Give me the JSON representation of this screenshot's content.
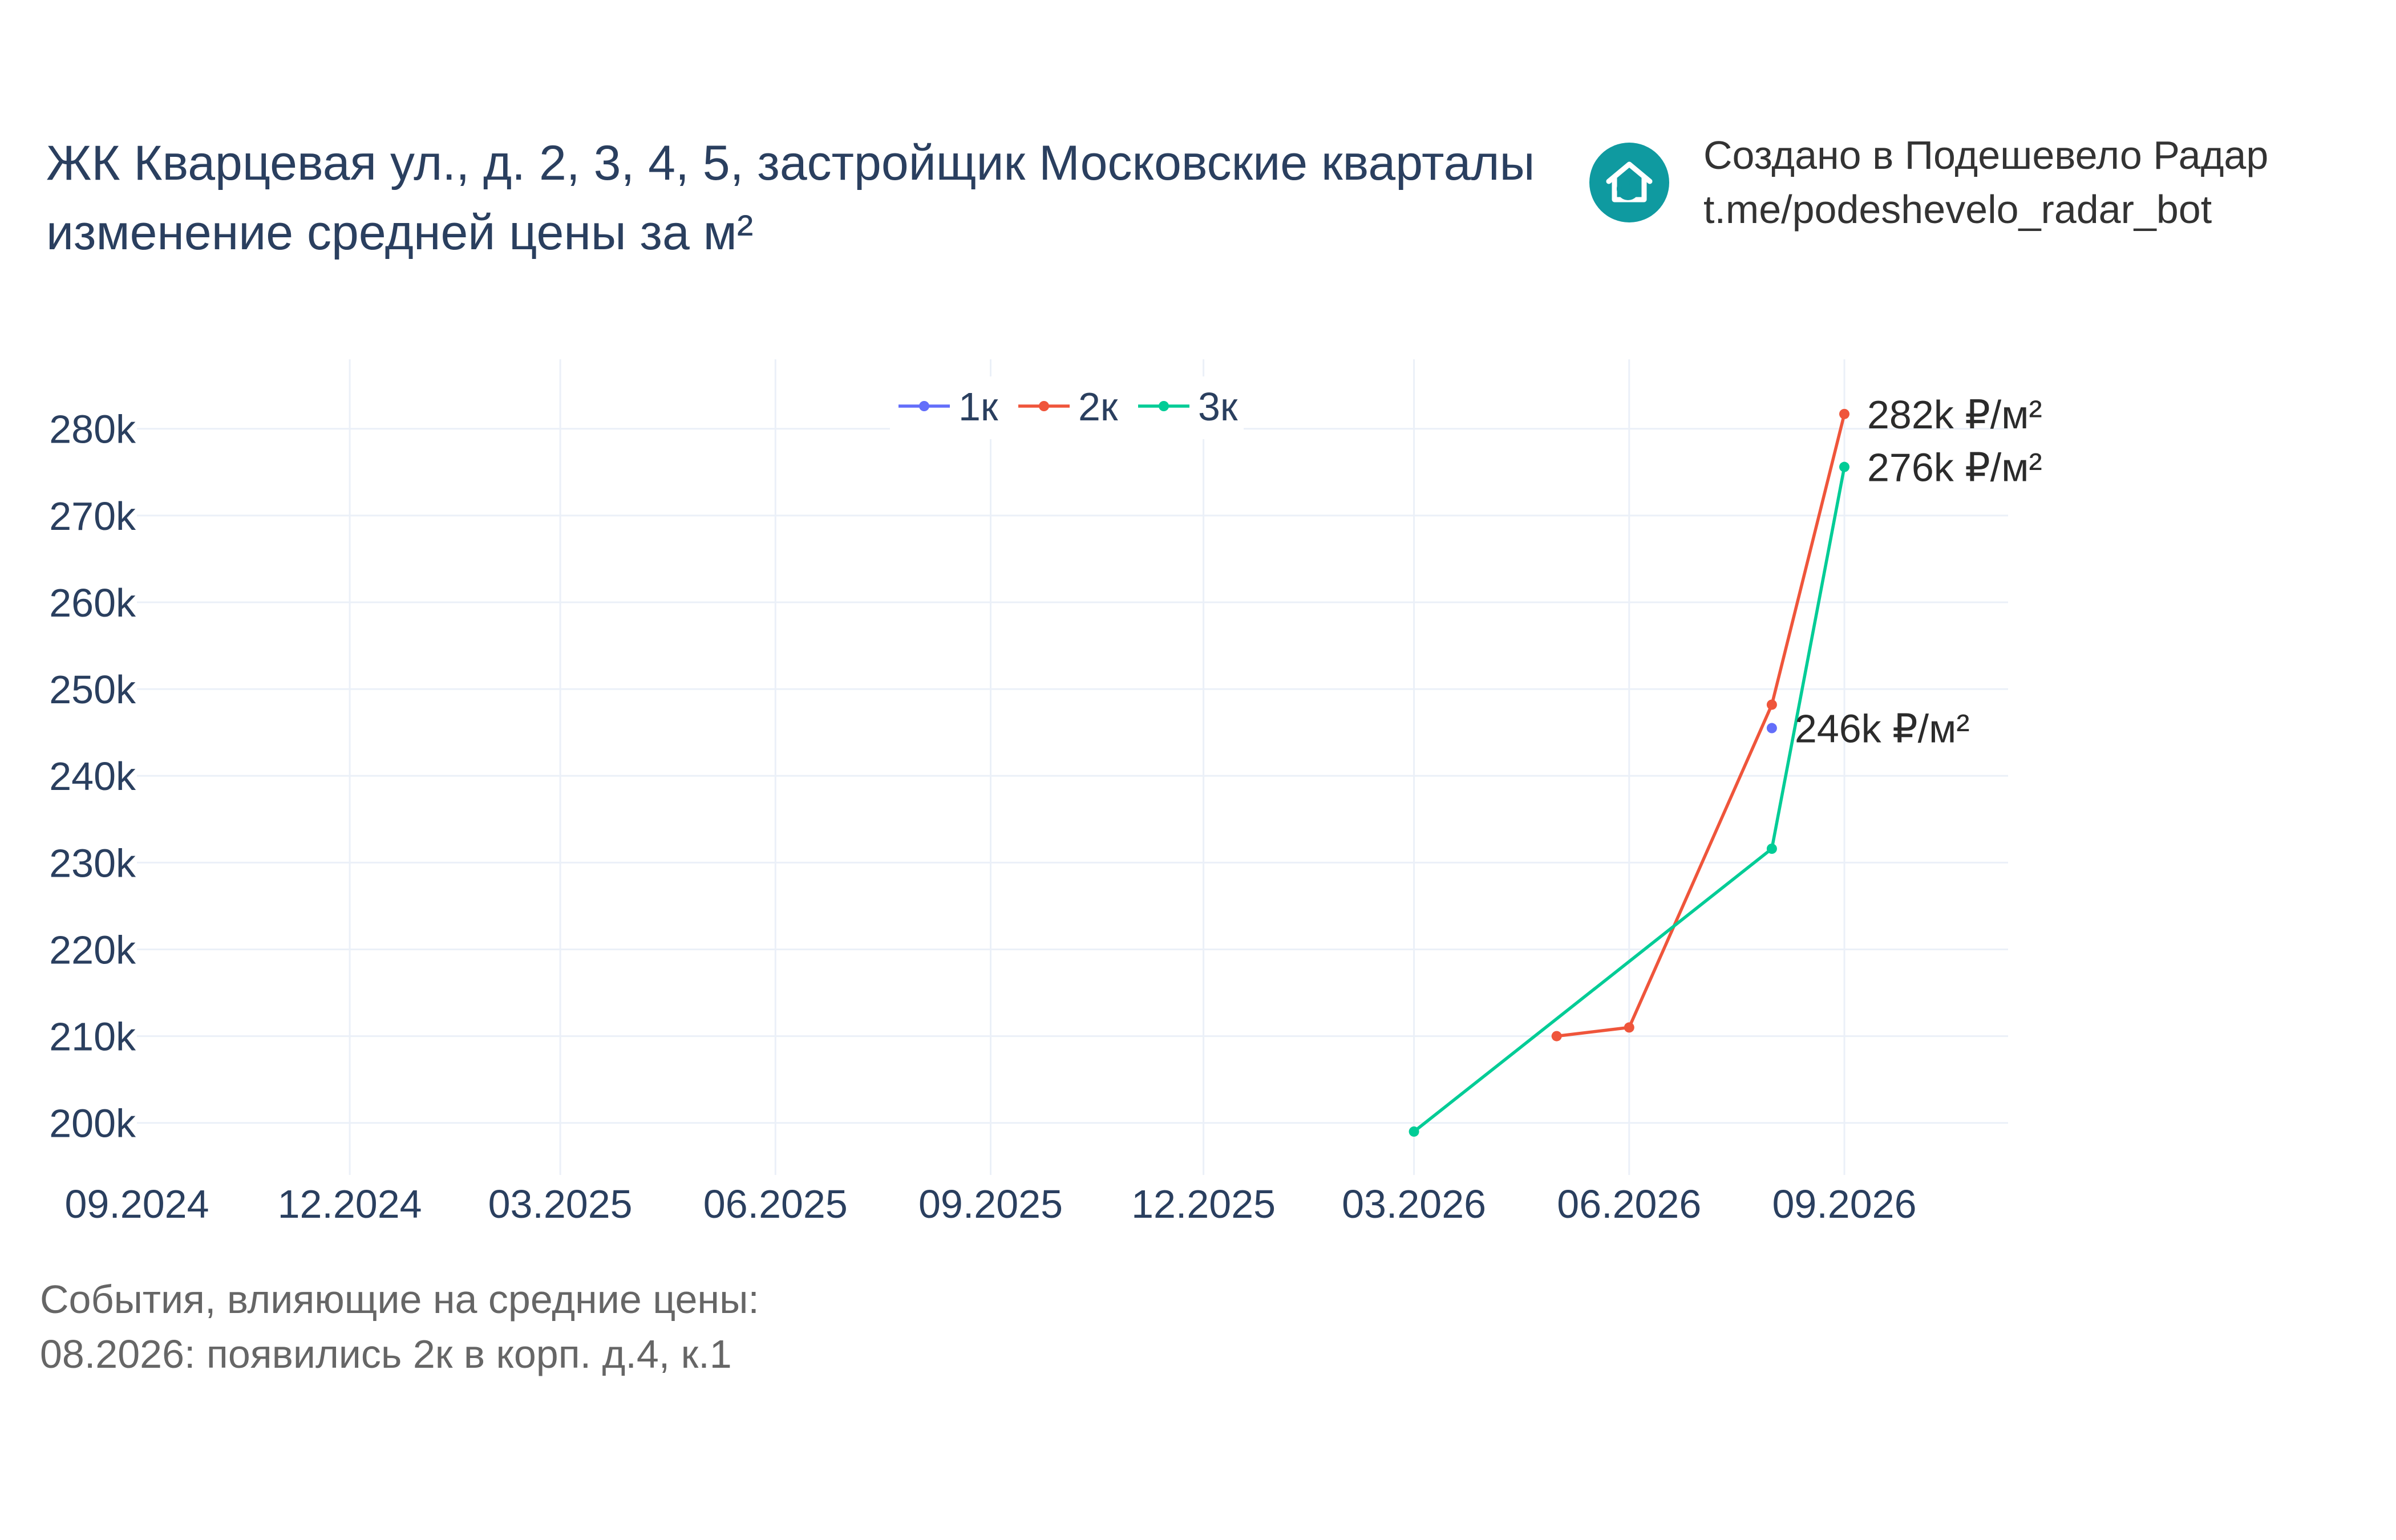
{
  "header": {
    "title_line1": "ЖК Кварцевая ул., д. 2, 3, 4, 5, застройщик Московские кварталы",
    "title_line2": "изменение средней цены за м²",
    "brand_line1": "Создано в Подешевело Радар",
    "brand_line2": "t.me/podeshevelo_radar_bot",
    "logo_icon": "house-refresh-icon",
    "logo_color": "#0f9aa0"
  },
  "events": {
    "heading": "События, влияющие на средние цены:",
    "items": [
      "08.2026: появились 2к в корп. д.4, к.1"
    ]
  },
  "chart_data": {
    "type": "line",
    "title": "",
    "xlabel": "",
    "ylabel": "",
    "x_axis_type": "date",
    "xlim": [
      "2024-09-01",
      "2026-11-10"
    ],
    "ylim": [
      194000,
      288000
    ],
    "grid": true,
    "legend_placement": "top-center",
    "x_ticks": [
      {
        "date": "2024-09-01",
        "label": "09.2024"
      },
      {
        "date": "2024-12-01",
        "label": "12.2024"
      },
      {
        "date": "2025-03-01",
        "label": "03.2025"
      },
      {
        "date": "2025-06-01",
        "label": "06.2025"
      },
      {
        "date": "2025-09-01",
        "label": "09.2025"
      },
      {
        "date": "2025-12-01",
        "label": "12.2025"
      },
      {
        "date": "2026-03-01",
        "label": "03.2026"
      },
      {
        "date": "2026-06-01",
        "label": "06.2026"
      },
      {
        "date": "2026-09-01",
        "label": "09.2026"
      }
    ],
    "y_ticks": [
      {
        "value": 200000,
        "label": "200k"
      },
      {
        "value": 210000,
        "label": "210k"
      },
      {
        "value": 220000,
        "label": "220k"
      },
      {
        "value": 230000,
        "label": "230k"
      },
      {
        "value": 240000,
        "label": "240k"
      },
      {
        "value": 250000,
        "label": "250k"
      },
      {
        "value": 260000,
        "label": "260k"
      },
      {
        "value": 270000,
        "label": "270k"
      },
      {
        "value": 280000,
        "label": "280k"
      }
    ],
    "series": [
      {
        "name": "1к",
        "color": "#636efa",
        "points": [
          {
            "x": "2026-08-01",
            "y": 245500
          }
        ],
        "end_label": "246k ₽/м²"
      },
      {
        "name": "2к",
        "color": "#ef553b",
        "points": [
          {
            "x": "2026-05-01",
            "y": 210000
          },
          {
            "x": "2026-06-01",
            "y": 211000
          },
          {
            "x": "2026-08-01",
            "y": 248200
          },
          {
            "x": "2026-09-01",
            "y": 281700
          }
        ],
        "end_label": "282k ₽/м²"
      },
      {
        "name": "3к",
        "color": "#00cc96",
        "points": [
          {
            "x": "2026-03-01",
            "y": 199000
          },
          {
            "x": "2026-08-01",
            "y": 231600
          },
          {
            "x": "2026-09-01",
            "y": 275600
          }
        ],
        "end_label": "276k ₽/м²"
      }
    ]
  }
}
